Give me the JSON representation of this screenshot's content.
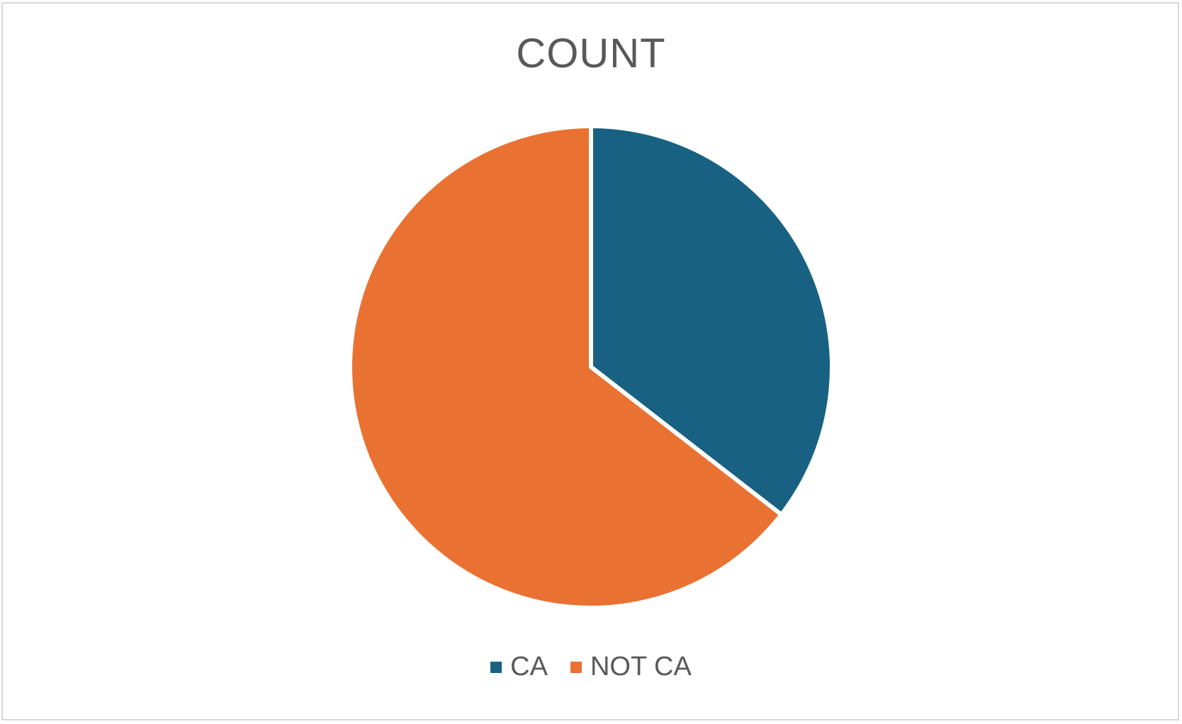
{
  "chart_data": {
    "type": "pie",
    "title": "COUNT",
    "categories": [
      "CA",
      "NOT CA"
    ],
    "values": [
      35.5,
      64.5
    ],
    "colors": [
      "#186183",
      "#e97233"
    ],
    "legend_position": "bottom"
  }
}
